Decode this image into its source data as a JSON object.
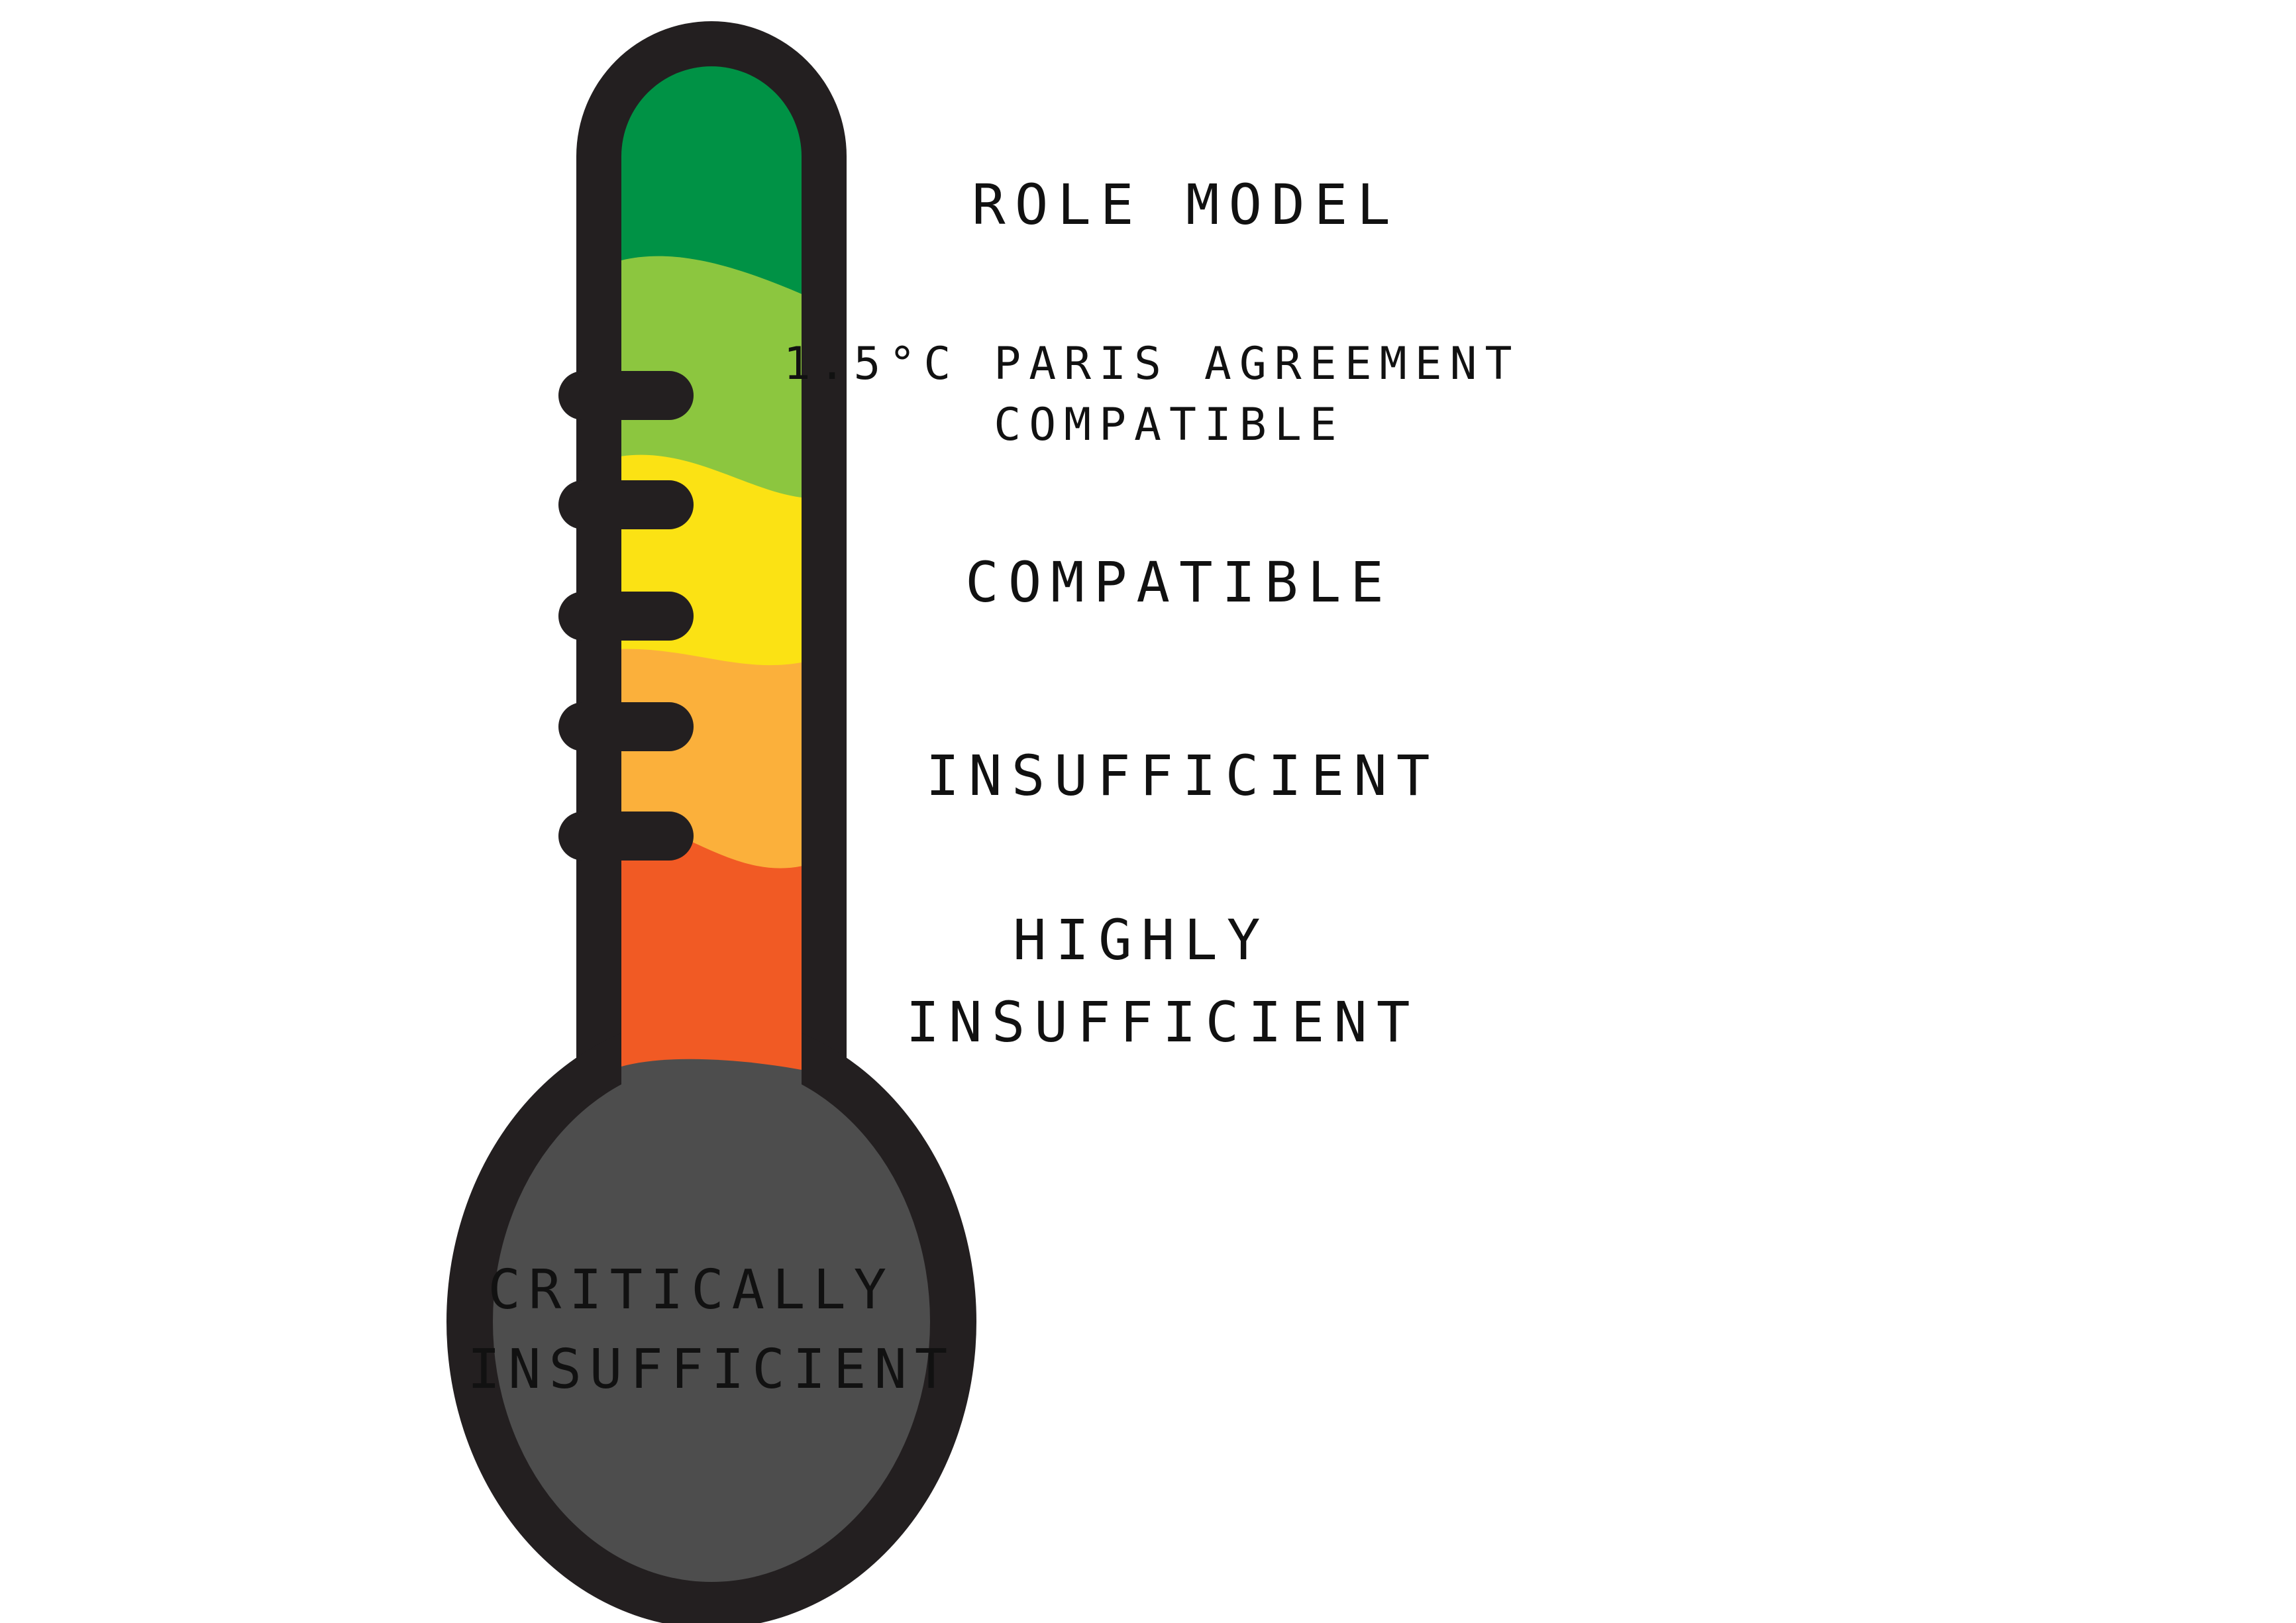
{
  "scale": {
    "levels": [
      {
        "id": "role-model",
        "lines": [
          "ROLE MODEL"
        ],
        "color": "#009245"
      },
      {
        "id": "paris-1-5",
        "lines": [
          "1.5°C  PARIS AGREEMENT",
          "COMPATIBLE"
        ],
        "color": "#8CC63F"
      },
      {
        "id": "compatible",
        "lines": [
          "COMPATIBLE"
        ],
        "color": "#FBE214"
      },
      {
        "id": "insufficient",
        "lines": [
          "INSUFFICIENT"
        ],
        "color": "#FBB03B"
      },
      {
        "id": "highly-insufficient",
        "lines": [
          "HIGHLY",
          "INSUFFICIENT"
        ],
        "color": "#F15A24"
      },
      {
        "id": "critically-insufficient",
        "lines": [
          "CRITICALLY",
          "INSUFFICIENT"
        ],
        "color": "#4D4D4D"
      }
    ],
    "outline_color": "#231F20"
  }
}
